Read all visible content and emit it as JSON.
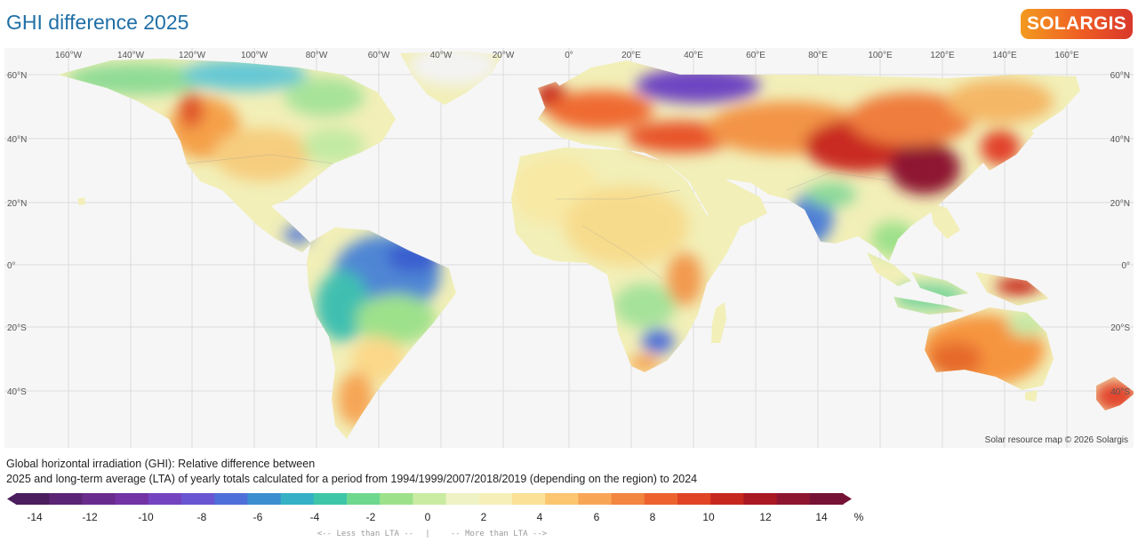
{
  "title": "GHI difference 2025",
  "brand": {
    "logo_text": "SOLARGIS"
  },
  "map": {
    "top_labels": [
      "160°W",
      "140°W",
      "120°W",
      "100°W",
      "80°W",
      "60°W",
      "40°W",
      "20°W",
      "0°",
      "20°E",
      "40°E",
      "60°E",
      "80°E",
      "100°E",
      "120°E",
      "140°E",
      "160°E"
    ],
    "lat_labels": [
      "60°N",
      "40°N",
      "20°N",
      "0°",
      "20°S",
      "40°S"
    ],
    "attribution": "Solar resource map © 2026 Solargis"
  },
  "caption": {
    "line1": "Global horizontal irradiation (GHI): Relative difference between",
    "line2": "2025 and long-term average (LTA) of yearly totals calculated for a period from 1994/1999/2007/2018/2019 (depending on the region) to 2024"
  },
  "legend": {
    "ticks": [
      "-14",
      "-12",
      "-10",
      "-8",
      "-6",
      "-4",
      "-2",
      "0",
      "2",
      "4",
      "6",
      "8",
      "10",
      "12",
      "14"
    ],
    "unit": "%",
    "less_label": "<-- Less than LTA --",
    "separator": "|",
    "more_label": "-- More than LTA -->",
    "colors": [
      "#4a1e5c",
      "#5b2474",
      "#6a2c8c",
      "#7333a3",
      "#7444c0",
      "#6a55d0",
      "#4f6fd8",
      "#3b8fd0",
      "#35b0c4",
      "#3fc6a8",
      "#6fd88f",
      "#9ee18b",
      "#c9eba2",
      "#eef2c4",
      "#f7efb8",
      "#fbe098",
      "#fbc66f",
      "#f8a656",
      "#f2853f",
      "#ec6330",
      "#e04424",
      "#c7281e",
      "#a81924",
      "#8e1530",
      "#751236"
    ],
    "ramp": {
      "-14": "#4a1e5c",
      "-10": "#6a2c8c",
      "-8": "#6a55d0",
      "-6": "#3b8fd0",
      "-4": "#3fc6a8",
      "-2": "#9ee18b",
      "0": "#eef2c4",
      "2": "#fbe098",
      "4": "#f8a656",
      "6": "#ec6330",
      "8": "#d9361f",
      "10": "#b51c22",
      "12": "#8e1530",
      "14": "#751236"
    }
  }
}
